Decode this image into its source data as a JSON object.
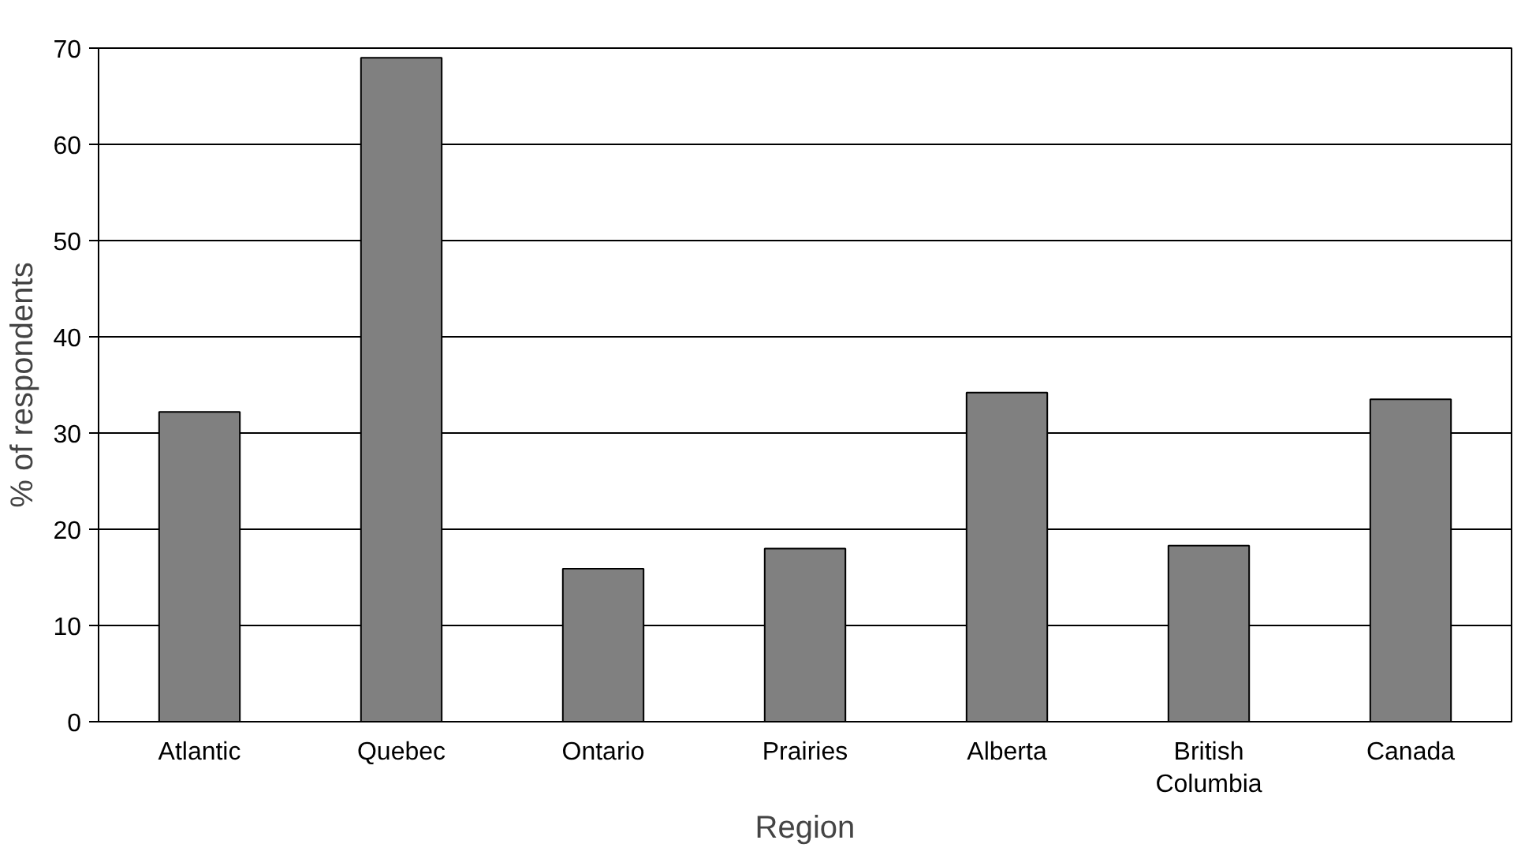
{
  "chart_data": {
    "type": "bar",
    "xlabel": "Region",
    "ylabel": "% of respondents",
    "categories": [
      "Atlantic",
      "Quebec",
      "Ontario",
      "Prairies",
      "Alberta",
      "British\nColumbia",
      "Canada"
    ],
    "values": [
      32.2,
      69,
      15.9,
      18,
      34.2,
      18.3,
      33.5
    ],
    "color": "#808080",
    "ylim": [
      0,
      70
    ],
    "yticks": [
      0,
      10,
      20,
      30,
      40,
      50,
      60,
      70
    ],
    "grid": "y"
  }
}
